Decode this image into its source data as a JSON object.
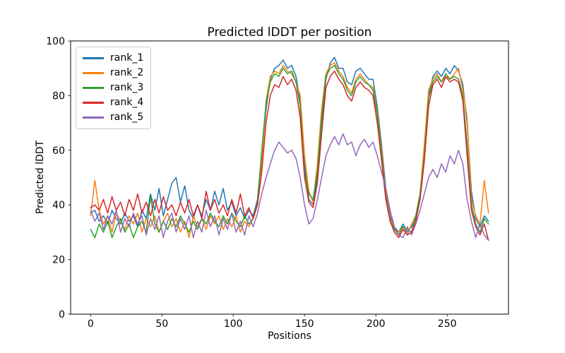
{
  "chart_data": {
    "type": "line",
    "title": "Predicted lDDT per position",
    "xlabel": "Positions",
    "ylabel": "Predicted lDDT",
    "xlim": [
      -14,
      293
    ],
    "ylim": [
      0,
      100
    ],
    "xticks": [
      0,
      50,
      100,
      150,
      200,
      250
    ],
    "yticks": [
      0,
      20,
      40,
      60,
      80,
      100
    ],
    "grid": false,
    "legend_position": "upper left",
    "x_start": 0,
    "x_step": 3,
    "series": [
      {
        "name": "rank_1",
        "color": "#1f77b4",
        "values": [
          37,
          38,
          34,
          36,
          33,
          38,
          35,
          33,
          37,
          34,
          36,
          32,
          38,
          35,
          44,
          38,
          46,
          36,
          42,
          48,
          50,
          41,
          47,
          38,
          35,
          40,
          36,
          42,
          38,
          45,
          40,
          46,
          38,
          41,
          36,
          39,
          35,
          38,
          36,
          42,
          58,
          75,
          86,
          90,
          91,
          93,
          90,
          91,
          87,
          78,
          55,
          42,
          40,
          50,
          70,
          86,
          92,
          94,
          90,
          90,
          85,
          84,
          89,
          90,
          88,
          86,
          86,
          76,
          62,
          46,
          36,
          32,
          30,
          33,
          30,
          32,
          35,
          42,
          60,
          80,
          87,
          89,
          87,
          90,
          88,
          91,
          89,
          84,
          70,
          45,
          35,
          32,
          36,
          34
        ]
      },
      {
        "name": "rank_2",
        "color": "#ff7f0e",
        "values": [
          36,
          49,
          38,
          33,
          36,
          30,
          37,
          34,
          31,
          36,
          33,
          37,
          30,
          35,
          32,
          36,
          30,
          34,
          37,
          32,
          35,
          30,
          34,
          28,
          36,
          32,
          35,
          31,
          36,
          33,
          36,
          31,
          35,
          32,
          36,
          30,
          34,
          32,
          35,
          40,
          55,
          78,
          87,
          89,
          88,
          91,
          89,
          88,
          85,
          80,
          58,
          45,
          41,
          55,
          75,
          88,
          91,
          92,
          89,
          87,
          83,
          81,
          86,
          88,
          86,
          84,
          83,
          74,
          60,
          44,
          35,
          31,
          30,
          32,
          29,
          33,
          36,
          44,
          62,
          82,
          86,
          88,
          85,
          87,
          86,
          88,
          90,
          82,
          72,
          42,
          36,
          33,
          49,
          37
        ]
      },
      {
        "name": "rank_3",
        "color": "#2ca02c",
        "values": [
          31,
          28,
          33,
          30,
          34,
          28,
          32,
          35,
          30,
          33,
          28,
          32,
          34,
          30,
          43,
          33,
          30,
          34,
          31,
          35,
          32,
          36,
          33,
          30,
          34,
          31,
          35,
          33,
          37,
          34,
          32,
          36,
          33,
          37,
          34,
          32,
          36,
          33,
          35,
          41,
          60,
          77,
          85,
          88,
          87,
          90,
          88,
          89,
          85,
          76,
          52,
          44,
          42,
          52,
          72,
          87,
          90,
          91,
          88,
          86,
          82,
          80,
          85,
          87,
          85,
          84,
          82,
          73,
          58,
          43,
          34,
          31,
          29,
          32,
          31,
          30,
          36,
          44,
          58,
          79,
          85,
          87,
          85,
          88,
          86,
          87,
          86,
          80,
          62,
          40,
          33,
          30,
          35,
          33
        ]
      },
      {
        "name": "rank_4",
        "color": "#d62728",
        "values": [
          39,
          40,
          38,
          42,
          37,
          43,
          38,
          41,
          36,
          42,
          38,
          44,
          37,
          41,
          36,
          42,
          37,
          43,
          38,
          40,
          36,
          41,
          37,
          42,
          36,
          40,
          35,
          45,
          38,
          42,
          37,
          40,
          36,
          42,
          37,
          44,
          36,
          39,
          35,
          40,
          52,
          70,
          80,
          84,
          83,
          87,
          84,
          86,
          82,
          72,
          50,
          41,
          39,
          48,
          66,
          83,
          87,
          89,
          86,
          84,
          80,
          78,
          83,
          85,
          83,
          82,
          80,
          70,
          56,
          42,
          34,
          30,
          28,
          31,
          29,
          30,
          34,
          42,
          56,
          76,
          84,
          86,
          83,
          87,
          85,
          86,
          85,
          78,
          58,
          38,
          32,
          29,
          33,
          27
        ]
      },
      {
        "name": "rank_5",
        "color": "#9467bd",
        "values": [
          38,
          34,
          37,
          31,
          36,
          33,
          38,
          30,
          35,
          32,
          37,
          33,
          36,
          29,
          35,
          31,
          36,
          28,
          34,
          37,
          30,
          35,
          31,
          36,
          28,
          34,
          30,
          38,
          32,
          36,
          29,
          35,
          31,
          37,
          30,
          34,
          29,
          36,
          32,
          37,
          44,
          50,
          55,
          60,
          63,
          61,
          59,
          60,
          57,
          50,
          40,
          33,
          35,
          42,
          50,
          58,
          62,
          65,
          62,
          66,
          62,
          63,
          58,
          62,
          64,
          61,
          63,
          58,
          52,
          46,
          38,
          32,
          29,
          28,
          32,
          29,
          33,
          38,
          44,
          50,
          53,
          50,
          55,
          52,
          58,
          55,
          60,
          55,
          42,
          34,
          28,
          33,
          29,
          27
        ]
      }
    ]
  },
  "colors": {
    "axis": "#000000",
    "text": "#000000",
    "legend_border": "#cccccc",
    "background": "#ffffff"
  }
}
